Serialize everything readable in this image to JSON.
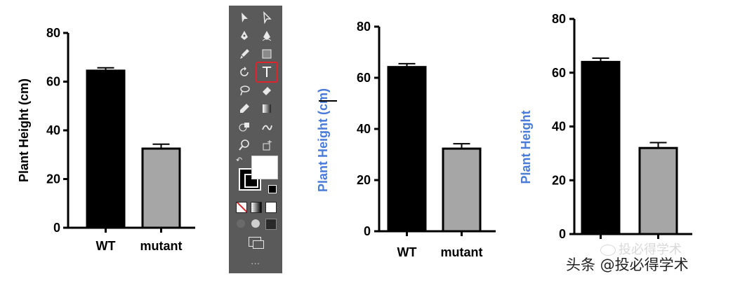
{
  "chart_data": [
    {
      "type": "bar",
      "categories": [
        "WT",
        "mutant"
      ],
      "values": [
        64.5,
        32.5
      ],
      "errors": [
        1.2,
        1.8
      ],
      "ylabel": "Plant Height (cm)",
      "ylim": [
        0,
        80
      ],
      "yticks": [
        "0",
        "20",
        "40",
        "60",
        "80"
      ],
      "bar_colors": [
        "#000000",
        "#a6a6a6"
      ]
    },
    {
      "type": "bar",
      "categories": [
        "WT",
        "mutant"
      ],
      "values": [
        64.2,
        32.3
      ],
      "errors": [
        1.3,
        1.9
      ],
      "ylabel": "Plant Height (cm)",
      "ylim": [
        0,
        80
      ],
      "yticks": [
        "0",
        "20",
        "40",
        "60",
        "80"
      ],
      "bar_colors": [
        "#000000",
        "#a6a6a6"
      ],
      "label_color": "#4a7bd8"
    },
    {
      "type": "bar",
      "categories": [
        "",
        ""
      ],
      "values": [
        64.0,
        32.0
      ],
      "errors": [
        1.4,
        2.0
      ],
      "ylabel": "Plant Height",
      "ylim": [
        0,
        80
      ],
      "yticks": [
        "0",
        "20",
        "40",
        "60",
        "80"
      ],
      "bar_colors": [
        "#000000",
        "#a6a6a6"
      ],
      "label_color": "#4a7bd8"
    }
  ],
  "toolbar": {
    "background": "#5a5a5a",
    "active_tool": "type-tool",
    "active_highlight": "#e0242c",
    "type_glyph": "T",
    "more_label": "..."
  },
  "watermark": {
    "line1": "投必得学术",
    "line2": "头条 @投必得学术"
  }
}
